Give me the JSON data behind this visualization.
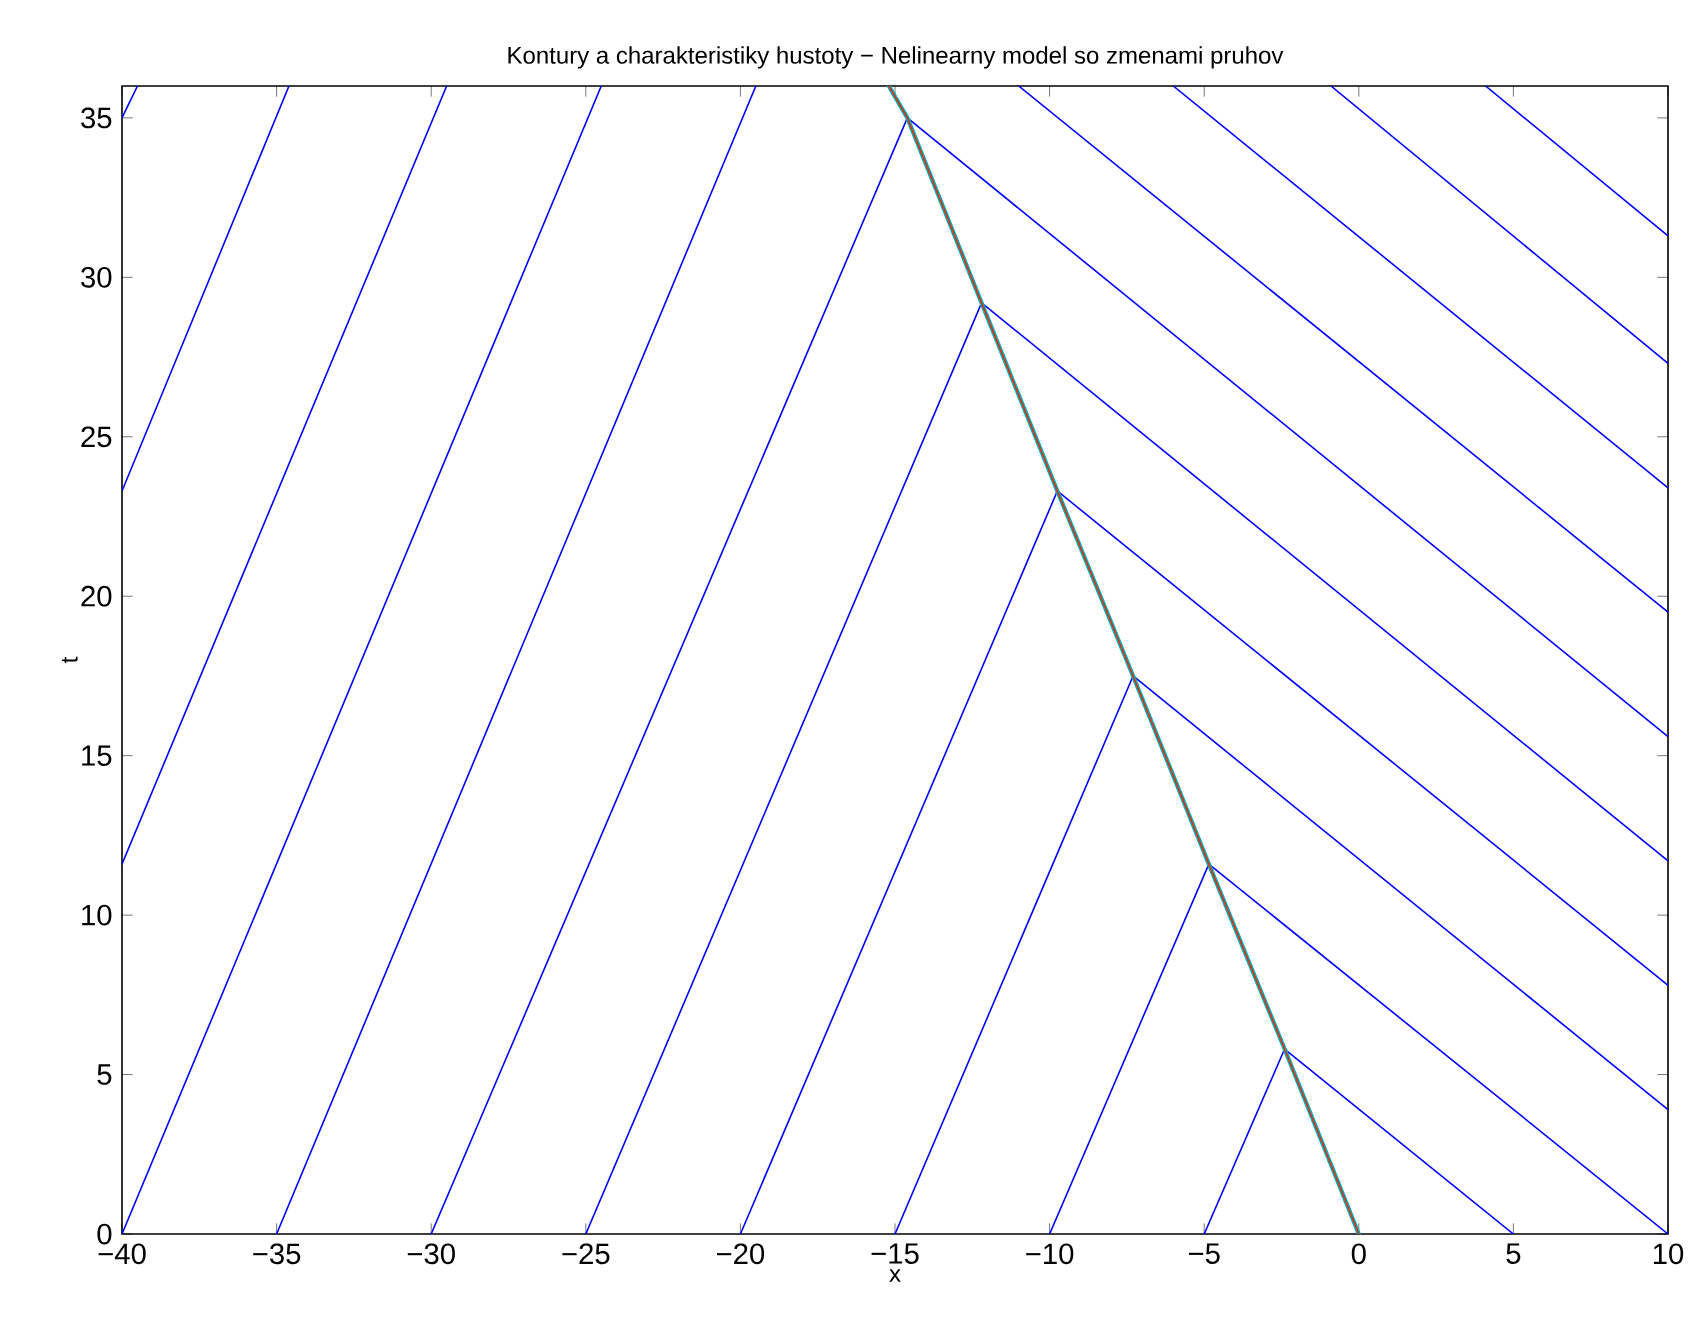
{
  "chart_data": {
    "type": "line",
    "title": "Kontury a charakteristiky hustoty − Nelinearny model so zmenami pruhov",
    "xlabel": "x",
    "ylabel": "t",
    "xlim": [
      -40,
      10
    ],
    "ylim": [
      0,
      36
    ],
    "xticks": [
      {
        "value": -40,
        "label": "−40"
      },
      {
        "value": -35,
        "label": "−35"
      },
      {
        "value": -30,
        "label": "−30"
      },
      {
        "value": -25,
        "label": "−25"
      },
      {
        "value": -20,
        "label": "−20"
      },
      {
        "value": -15,
        "label": "−15"
      },
      {
        "value": -10,
        "label": "−10"
      },
      {
        "value": -5,
        "label": "−5"
      },
      0,
      5,
      10
    ],
    "yticks": [
      0,
      5,
      10,
      15,
      20,
      25,
      30,
      35
    ],
    "series": [
      {
        "color": "#0000ff",
        "x": [
          -40,
          -39.5
        ],
        "values": [
          35,
          36
        ]
      },
      {
        "color": "#0000ff",
        "x": [
          -40,
          -34.6
        ],
        "values": [
          23.3,
          36
        ]
      },
      {
        "color": "#0000ff",
        "x": [
          -40,
          -29.5
        ],
        "values": [
          11.6,
          36
        ]
      },
      {
        "color": "#0000ff",
        "x": [
          -40,
          -24.5
        ],
        "values": [
          0,
          36
        ]
      },
      {
        "color": "#0000ff",
        "x": [
          -35,
          -19.5
        ],
        "values": [
          0,
          36
        ]
      },
      {
        "color": "#0000ff",
        "x": [
          -30,
          -14.6
        ],
        "values": [
          0,
          35
        ]
      },
      {
        "color": "#0000ff",
        "x": [
          -25,
          -12.2
        ],
        "values": [
          0,
          29.2
        ]
      },
      {
        "color": "#0000ff",
        "x": [
          -20,
          -9.75
        ],
        "values": [
          0,
          23.3
        ]
      },
      {
        "color": "#0000ff",
        "x": [
          -15,
          -7.3
        ],
        "values": [
          0,
          17.5
        ]
      },
      {
        "color": "#0000ff",
        "x": [
          -10,
          -4.85
        ],
        "values": [
          0,
          11.6
        ]
      },
      {
        "color": "#0000ff",
        "x": [
          -5,
          -2.4
        ],
        "values": [
          0,
          5.8
        ]
      },
      {
        "color": "#0000ff",
        "x": [
          -2.4,
          5
        ],
        "values": [
          5.8,
          0
        ]
      },
      {
        "color": "#0000ff",
        "x": [
          -4.85,
          10
        ],
        "values": [
          11.6,
          0
        ]
      },
      {
        "color": "#0000ff",
        "x": [
          -7.3,
          10
        ],
        "values": [
          17.5,
          3.9
        ]
      },
      {
        "color": "#0000ff",
        "x": [
          -9.75,
          10
        ],
        "values": [
          23.3,
          7.8
        ]
      },
      {
        "color": "#0000ff",
        "x": [
          -12.2,
          10
        ],
        "values": [
          29.2,
          11.7
        ]
      },
      {
        "color": "#0000ff",
        "x": [
          -14.6,
          10
        ],
        "values": [
          35,
          15.6
        ]
      },
      {
        "color": "#0000ff",
        "x": [
          -11.0,
          10
        ],
        "values": [
          36,
          19.5
        ]
      },
      {
        "color": "#0000ff",
        "x": [
          -6.0,
          10
        ],
        "values": [
          36,
          23.4
        ]
      },
      {
        "color": "#0000ff",
        "x": [
          -0.9,
          10
        ],
        "values": [
          36,
          27.3
        ]
      },
      {
        "color": "#0000ff",
        "x": [
          4.1,
          10
        ],
        "values": [
          36,
          31.3
        ]
      },
      {
        "color": "#00b0c0",
        "x": [
          0,
          -2.4,
          -4.85,
          -7.3,
          -9.75,
          -12.2,
          -14.6,
          -15.2
        ],
        "values": [
          0,
          5.8,
          11.6,
          17.5,
          23.3,
          29.2,
          35,
          36
        ]
      },
      {
        "color": "#e03000",
        "x": [
          0,
          -2.4,
          -4.85,
          -7.3,
          -9.75,
          -12.2,
          -14.6,
          -15.2
        ],
        "values": [
          0,
          5.8,
          11.6,
          17.5,
          23.3,
          29.2,
          35,
          36
        ]
      }
    ]
  }
}
